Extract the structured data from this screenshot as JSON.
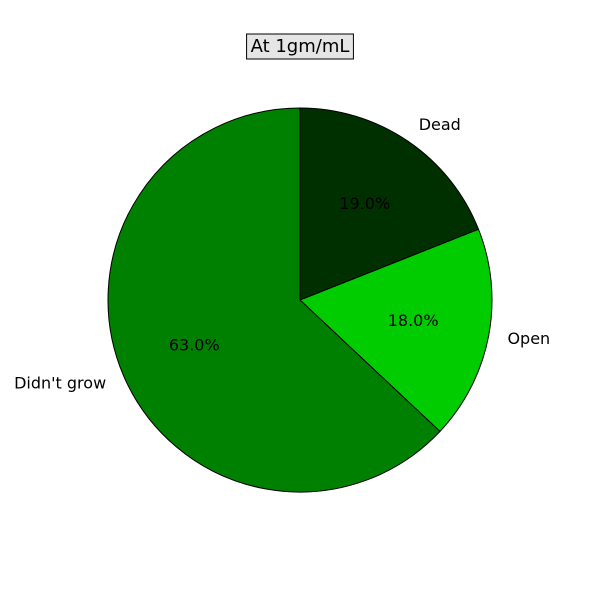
{
  "chart_data": {
    "type": "pie",
    "title": "At 1gm/mL",
    "categories": [
      "Dead",
      "Open",
      "Didn't grow"
    ],
    "values": [
      19.0,
      18.0,
      63.0
    ],
    "value_labels": [
      "19.0%",
      "18.0%",
      "63.0%"
    ],
    "colors": [
      "#003000",
      "#00cc00",
      "#008000"
    ],
    "start_angle_deg": 90,
    "direction": "clockwise",
    "legend": "none"
  }
}
